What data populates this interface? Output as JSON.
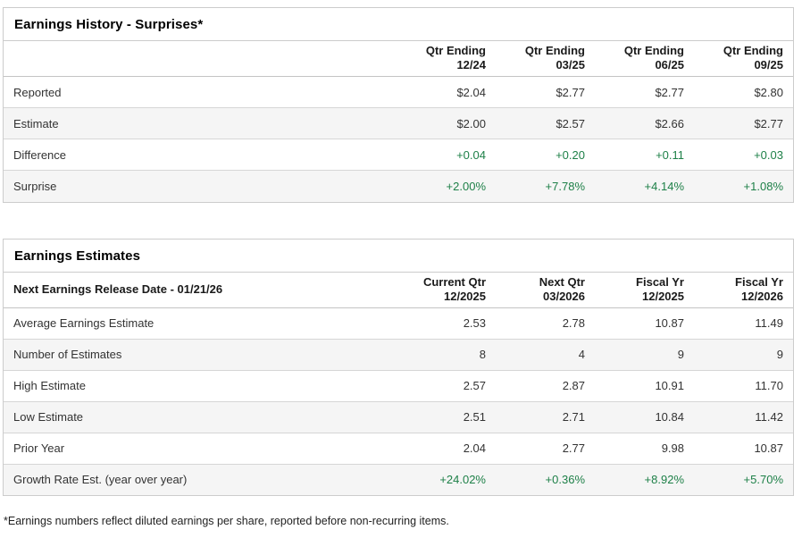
{
  "colors": {
    "positive_green": "#1e8048",
    "row_stripe": "#f5f5f5",
    "table_border": "#cccccc"
  },
  "history": {
    "title": "Earnings History - Surprises*",
    "columns": [
      "Qtr Ending\n12/24",
      "Qtr Ending\n03/25",
      "Qtr Ending\n06/25",
      "Qtr Ending\n09/25"
    ],
    "rows": [
      {
        "label": "Reported",
        "values": [
          "$2.04",
          "$2.77",
          "$2.77",
          "$2.80"
        ],
        "green": false
      },
      {
        "label": "Estimate",
        "values": [
          "$2.00",
          "$2.57",
          "$2.66",
          "$2.77"
        ],
        "green": false
      },
      {
        "label": "Difference",
        "values": [
          "+0.04",
          "+0.20",
          "+0.11",
          "+0.03"
        ],
        "green": true
      },
      {
        "label": "Surprise",
        "values": [
          "+2.00%",
          "+7.78%",
          "+4.14%",
          "+1.08%"
        ],
        "green": true
      }
    ]
  },
  "estimates": {
    "title": "Earnings Estimates",
    "row_header": "Next Earnings Release Date - 01/21/26",
    "columns": [
      "Current Qtr\n12/2025",
      "Next Qtr\n03/2026",
      "Fiscal Yr\n12/2025",
      "Fiscal Yr\n12/2026"
    ],
    "rows": [
      {
        "label": "Average Earnings Estimate",
        "values": [
          "2.53",
          "2.78",
          "10.87",
          "11.49"
        ],
        "green": false
      },
      {
        "label": "Number of Estimates",
        "values": [
          "8",
          "4",
          "9",
          "9"
        ],
        "green": false
      },
      {
        "label": "High Estimate",
        "values": [
          "2.57",
          "2.87",
          "10.91",
          "11.70"
        ],
        "green": false
      },
      {
        "label": "Low Estimate",
        "values": [
          "2.51",
          "2.71",
          "10.84",
          "11.42"
        ],
        "green": false
      },
      {
        "label": "Prior Year",
        "values": [
          "2.04",
          "2.77",
          "9.98",
          "10.87"
        ],
        "green": false
      },
      {
        "label": "Growth Rate Est. (year over year)",
        "values": [
          "+24.02%",
          "+0.36%",
          "+8.92%",
          "+5.70%"
        ],
        "green": true
      }
    ]
  },
  "footnote": "*Earnings numbers reflect diluted earnings per share, reported before non-recurring items."
}
